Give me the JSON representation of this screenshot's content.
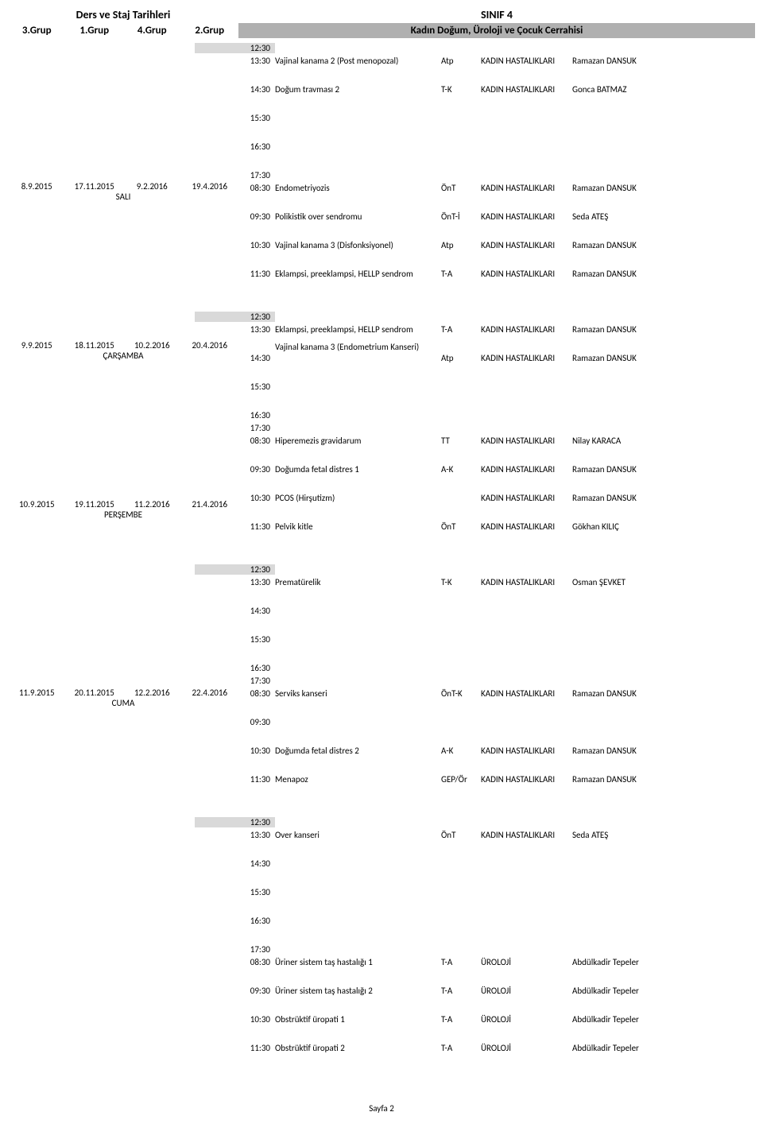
{
  "header": {
    "left": "Ders ve Staj Tarihleri",
    "right": "SINIF 4"
  },
  "groups": [
    "3.Grup",
    "1.Grup",
    "4.Grup",
    "2.Grup"
  ],
  "class_title": "Kadın Doğum, Üroloji ve Çocuk Cerrahisi",
  "footer": "Sayfa 2",
  "days": [
    {
      "dates": [
        "8.9.2015",
        "17.11.2015",
        "9.2.2016",
        "19.4.2016"
      ],
      "name": "SALI",
      "top_gap": 174,
      "rows": [
        {
          "time": "12:30",
          "break": true,
          "tight": true
        },
        {
          "time": "13:30",
          "topic": "Vajinal kanama 2 (Post menopozal)",
          "code": "Atp",
          "dept": "KADIN HASTALIKLARI",
          "instructor": "Ramazan DANSUK"
        },
        {
          "time": "14:30",
          "topic": "Doğum travması 2",
          "code": "T-K",
          "dept": "KADIN HASTALIKLARI",
          "instructor": "Gonca BATMAZ"
        },
        {
          "time": "15:30"
        },
        {
          "time": "16:30"
        },
        {
          "time": "17:30",
          "tight": true
        },
        {
          "time": "08:30",
          "topic": "Endometriyozis",
          "code": "ÖnT",
          "dept": "KADIN HASTALIKLARI",
          "instructor": "Ramazan DANSUK"
        },
        {
          "time": "09:30",
          "topic": "Polikistik over sendromu",
          "code": "ÖnT-İ",
          "dept": "KADIN HASTALIKLARI",
          "instructor": "Seda ATEŞ"
        },
        {
          "time": "10:30",
          "topic": "Vajinal kanama 3 (Disfonksiyonel)",
          "code": "Atp",
          "dept": "KADIN HASTALIKLARI",
          "instructor": "Ramazan DANSUK"
        },
        {
          "time": "11:30",
          "topic": "Eklampsi, preeklampsi, HELLP sendrom",
          "code": "T-A",
          "dept": "KADIN HASTALIKLARI",
          "instructor": "Ramazan DANSUK"
        }
      ]
    },
    {
      "dates": [
        "9.9.2015",
        "18.11.2015",
        "10.2.2016",
        "20.4.2016"
      ],
      "name": "ÇARŞAMBA",
      "top_gap": 174,
      "rows": [
        {
          "time": "12:30",
          "break": true,
          "tight": true
        },
        {
          "time": "13:30",
          "topic": "Eklampsi, preeklampsi, HELLP sendrom",
          "code": "T-A",
          "dept": "KADIN HASTALIKLARI",
          "instructor": "Ramazan DANSUK"
        },
        {
          "time": "14:30",
          "topic": "Vajinal kanama 3 (Endometrium Kanseri)",
          "code": "Atp",
          "dept": "KADIN HASTALIKLARI",
          "instructor": "Ramazan DANSUK",
          "multiline": true
        },
        {
          "time": "15:30"
        },
        {
          "time": "16:30",
          "tight": true
        },
        {
          "time": "17:30",
          "tight": true
        },
        {
          "time": "08:30",
          "topic": "Hiperemezis gravidarum",
          "code": "TT",
          "dept": "KADIN HASTALIKLARI",
          "instructor": "Nilay KARACA"
        },
        {
          "time": "09:30",
          "topic": "Doğumda fetal distres 1",
          "code": "A-K",
          "dept": "KADIN HASTALIKLARI",
          "instructor": "Ramazan DANSUK"
        },
        {
          "time": "10:30",
          "topic": "PCOS (Hirşutizm)",
          "code": "",
          "dept": "KADIN HASTALIKLARI",
          "instructor": "Ramazan DANSUK"
        },
        {
          "time": "11:30",
          "topic": "Pelvik kitle",
          "code": "ÖnT",
          "dept": "KADIN HASTALIKLARI",
          "instructor": "Gökhan KILIÇ"
        }
      ]
    },
    {
      "dates": [
        "10.9.2015",
        "19.11.2015",
        "11.2.2016",
        "21.4.2016"
      ],
      "name": "PERŞEMBE",
      "top_gap": 174,
      "rows": [
        {
          "time": "12:30",
          "break": true,
          "tight": true
        },
        {
          "time": "13:30",
          "topic": "Prematürelik",
          "code": "T-K",
          "dept": "KADIN HASTALIKLARI",
          "instructor": "Osman ŞEVKET"
        },
        {
          "time": "14:30"
        },
        {
          "time": "15:30"
        },
        {
          "time": "16:30",
          "tight": true
        },
        {
          "time": "17:30",
          "tight": true
        },
        {
          "time": "08:30",
          "topic": "Serviks kanseri",
          "code": "ÖnT-K",
          "dept": "KADIN HASTALIKLARI",
          "instructor": "Ramazan DANSUK"
        },
        {
          "time": "09:30"
        },
        {
          "time": "10:30",
          "topic": "Doğumda fetal distres 2",
          "code": "A-K",
          "dept": "KADIN HASTALIKLARI",
          "instructor": "Ramazan DANSUK"
        },
        {
          "time": "11:30",
          "topic": "Menapoz",
          "code": "GEP/Ör",
          "dept": "KADIN HASTALIKLARI",
          "instructor": "Ramazan DANSUK"
        }
      ]
    },
    {
      "dates": [
        "11.9.2015",
        "20.11.2015",
        "12.2.2016",
        "22.4.2016"
      ],
      "name": "CUMA",
      "top_gap": 211,
      "rows": [
        {
          "time": "12:30",
          "break": true,
          "tight": true
        },
        {
          "time": "13:30",
          "topic": "Over kanseri",
          "code": "ÖnT",
          "dept": "KADIN HASTALIKLARI",
          "instructor": "Seda ATEŞ"
        },
        {
          "time": "14:30"
        },
        {
          "time": "15:30"
        },
        {
          "time": "16:30"
        },
        {
          "time": "17:30",
          "tight": true
        },
        {
          "time": "08:30",
          "topic": "Üriner sistem taş hastalığı 1",
          "code": "T-A",
          "dept": "ÜROLOJİ",
          "instructor": "Abdülkadir Tepeler"
        },
        {
          "time": "09:30",
          "topic": "Üriner sistem taş hastalığı 2",
          "code": "T-A",
          "dept": "ÜROLOJİ",
          "instructor": "Abdülkadir Tepeler"
        },
        {
          "time": "10:30",
          "topic": "Obstrüktif üropati 1",
          "code": "T-A",
          "dept": "ÜROLOJİ",
          "instructor": "Abdülkadir Tepeler"
        },
        {
          "time": "11:30",
          "topic": "Obstrüktif üropati 2",
          "code": "T-A",
          "dept": "ÜROLOJİ",
          "instructor": "Abdülkadir Tepeler"
        }
      ]
    }
  ]
}
